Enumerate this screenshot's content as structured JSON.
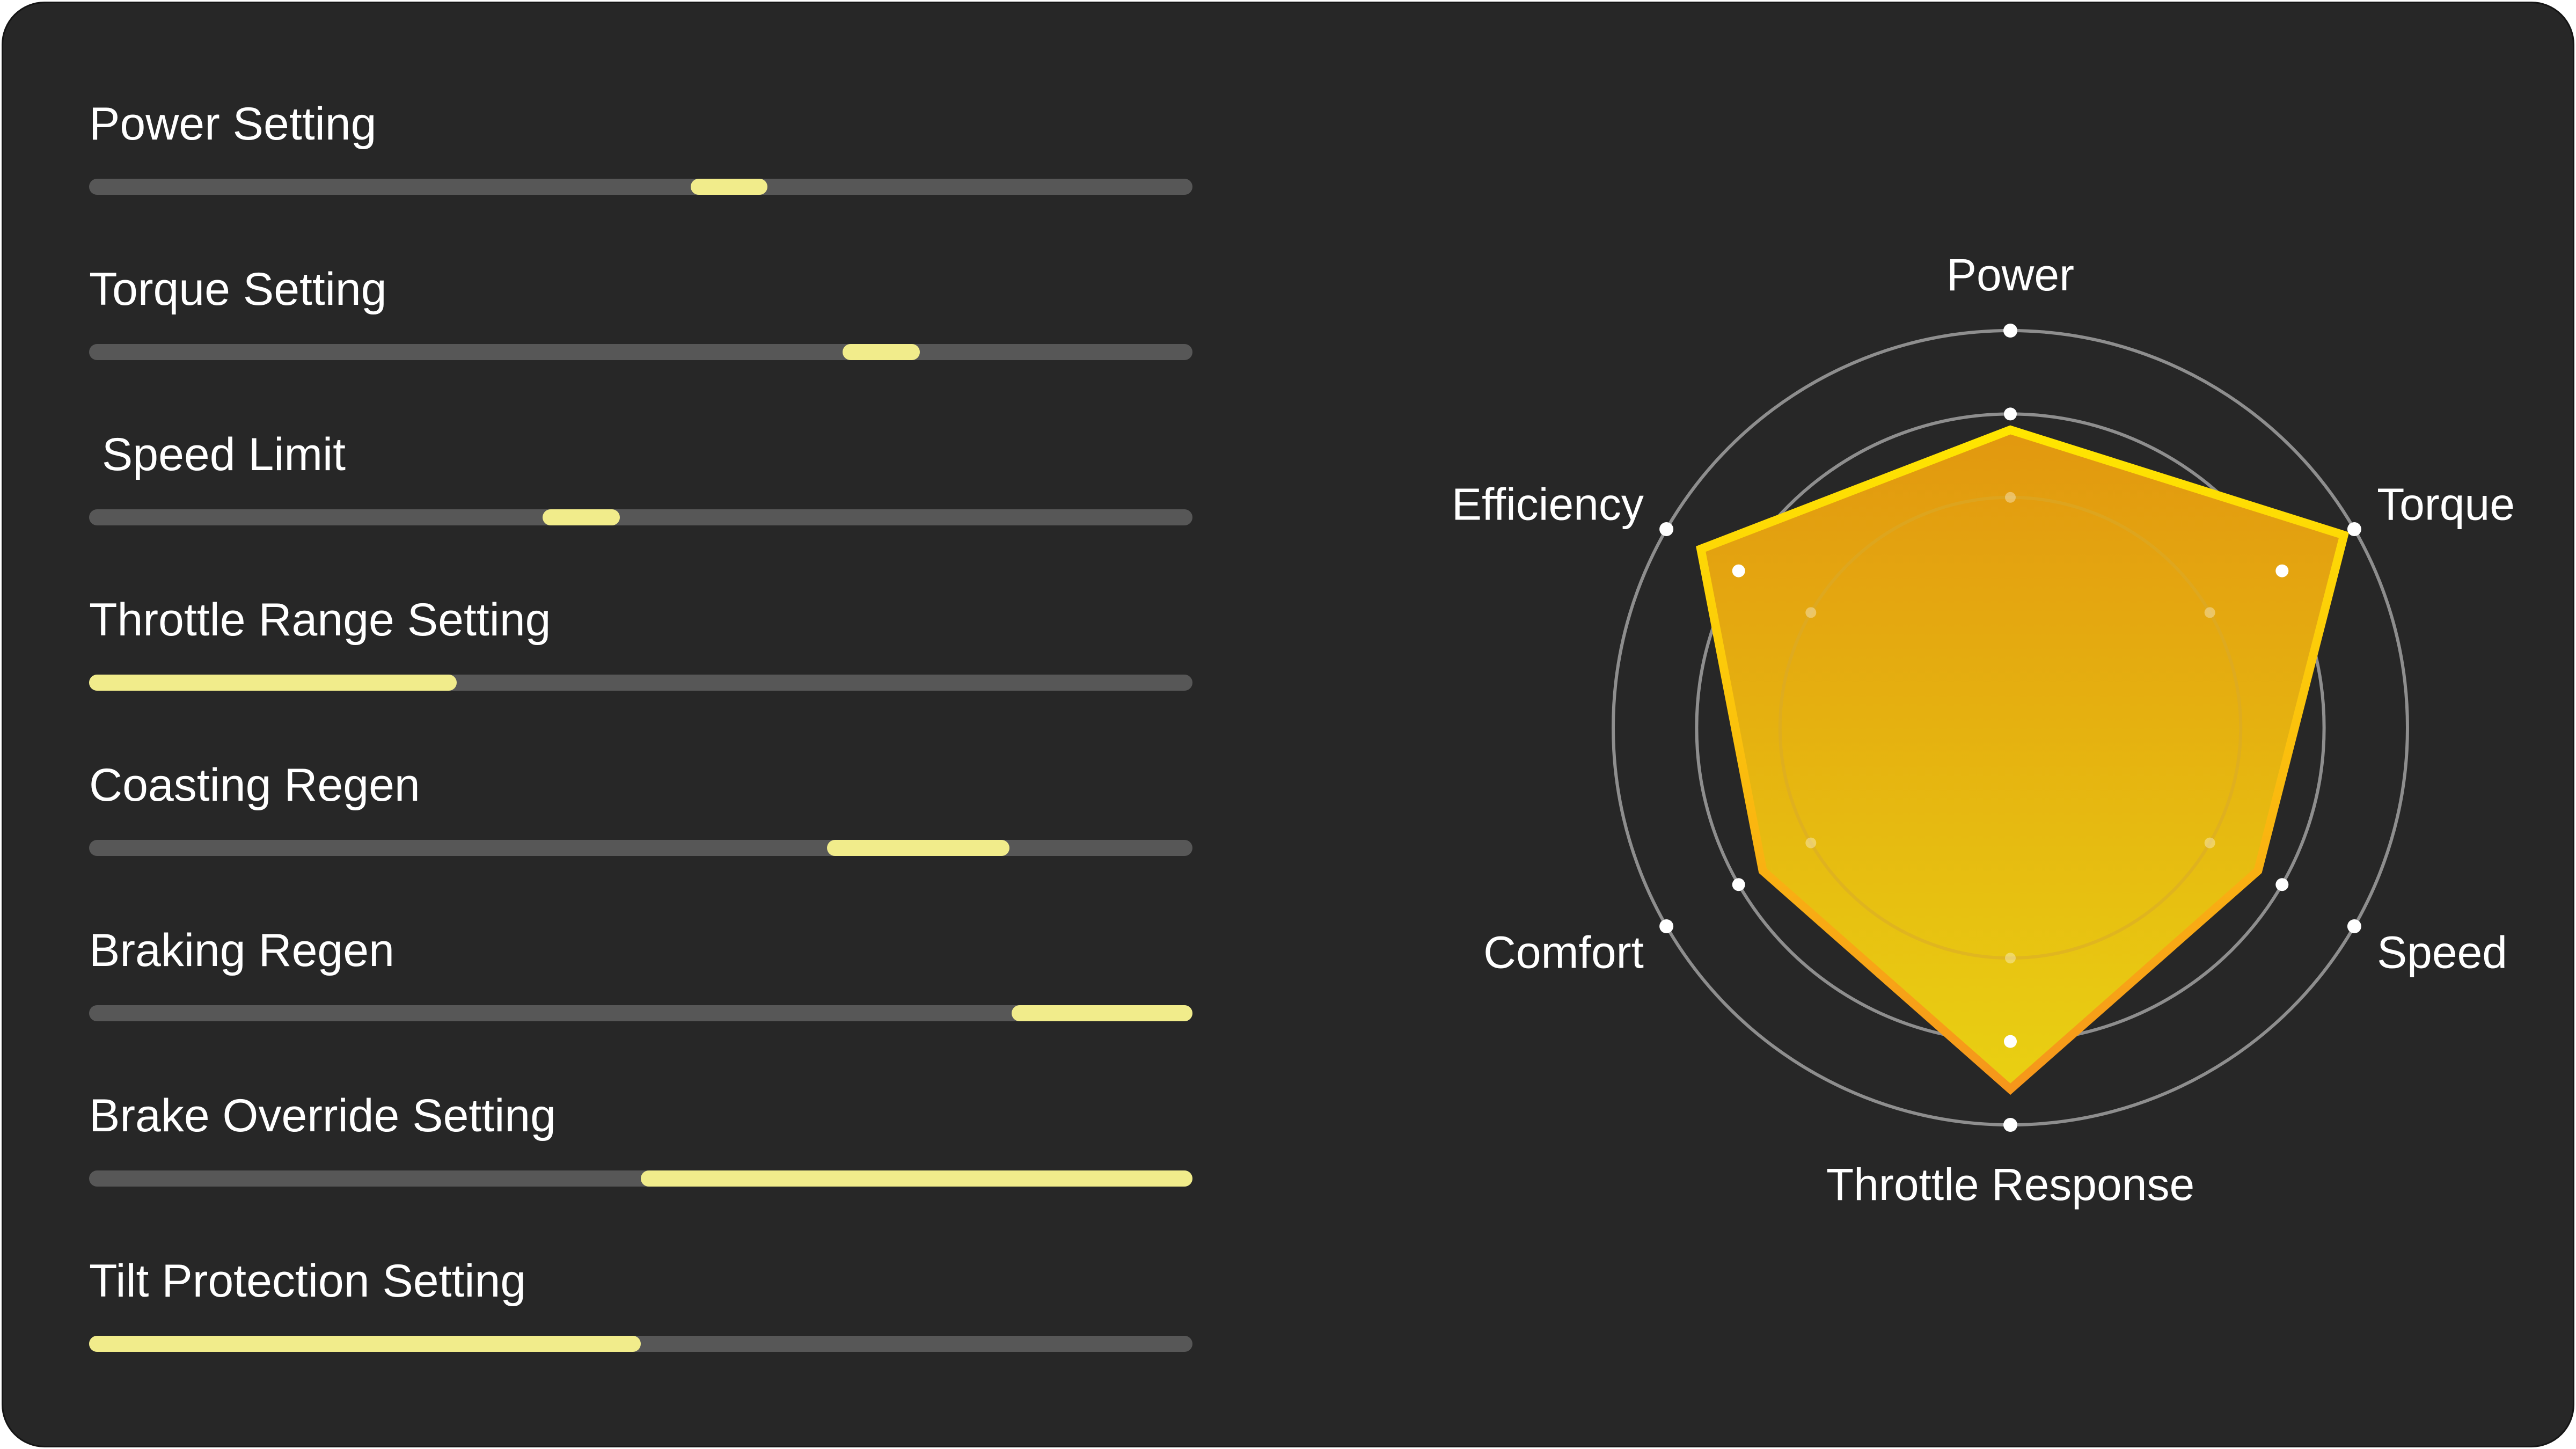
{
  "sliders": [
    {
      "label": "Power Setting",
      "start": 0.545,
      "end": 0.615
    },
    {
      "label": "Torque Setting",
      "start": 0.683,
      "end": 0.753
    },
    {
      "label": " Speed Limit",
      "start": 0.411,
      "end": 0.481
    },
    {
      "label": "Throttle Range Setting",
      "start": 0.0,
      "end": 0.333
    },
    {
      "label": "Coasting Regen",
      "start": 0.669,
      "end": 0.834
    },
    {
      "label": "Braking Regen",
      "start": 0.836,
      "end": 1.0
    },
    {
      "label": "Brake Override Setting",
      "start": 0.5,
      "end": 1.0
    },
    {
      "label": "Tilt Protection Setting",
      "start": 0.0,
      "end": 0.5
    }
  ],
  "chart_data": {
    "type": "radar",
    "axes": [
      "Power",
      "Torque",
      "Speed",
      "Throttle Response",
      "Comfort",
      "Efficiency"
    ],
    "values": [
      0.75,
      0.97,
      0.72,
      0.91,
      0.72,
      0.9
    ],
    "range": [
      0,
      1
    ],
    "rings": [
      0.58,
      0.79,
      1.0
    ],
    "colors": {
      "fill_top": "#e2980f",
      "fill_bottom": "#e9d012",
      "stroke_top": "#ffe600",
      "stroke_bottom": "#f6961b",
      "ring": "#8e8e8e",
      "inner_ring": "#d8a92c"
    }
  }
}
